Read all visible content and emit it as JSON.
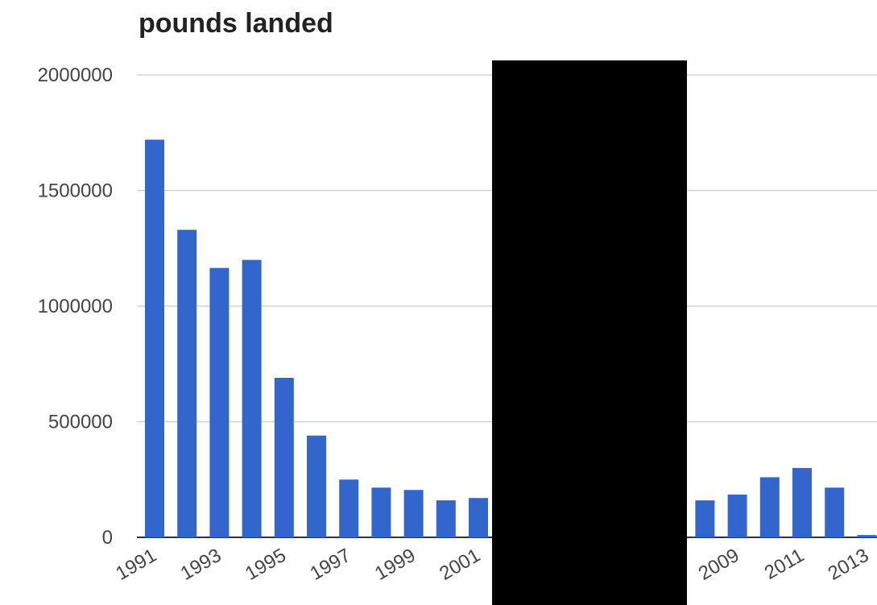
{
  "chart_data": {
    "type": "bar",
    "title": "pounds landed",
    "xlabel": "",
    "ylabel": "",
    "ylim": [
      0,
      2000000
    ],
    "yticks": [
      0,
      500000,
      1000000,
      1500000,
      2000000
    ],
    "ytick_labels": [
      "0",
      "500000",
      "1000000",
      "1500000",
      "2000000"
    ],
    "xtick_labels": [
      "1991",
      "1993",
      "1995",
      "1997",
      "1999",
      "2001",
      "2009",
      "2011",
      "2013"
    ],
    "categories": [
      "1991",
      "1992",
      "1993",
      "1994",
      "1995",
      "1996",
      "1997",
      "1998",
      "1999",
      "2000",
      "2001",
      "2008",
      "2009",
      "2010",
      "2011",
      "2012",
      "2013"
    ],
    "values": [
      1720000,
      1330000,
      1165000,
      1200000,
      690000,
      440000,
      250000,
      215000,
      205000,
      160000,
      170000,
      160000,
      185000,
      260000,
      300000,
      215000,
      10000
    ],
    "grid": true,
    "legend": "none",
    "bar_color": "#3366cc",
    "gridline_color": "#cccccc",
    "baseline_color": "#333333",
    "redaction_color": "#000000"
  }
}
